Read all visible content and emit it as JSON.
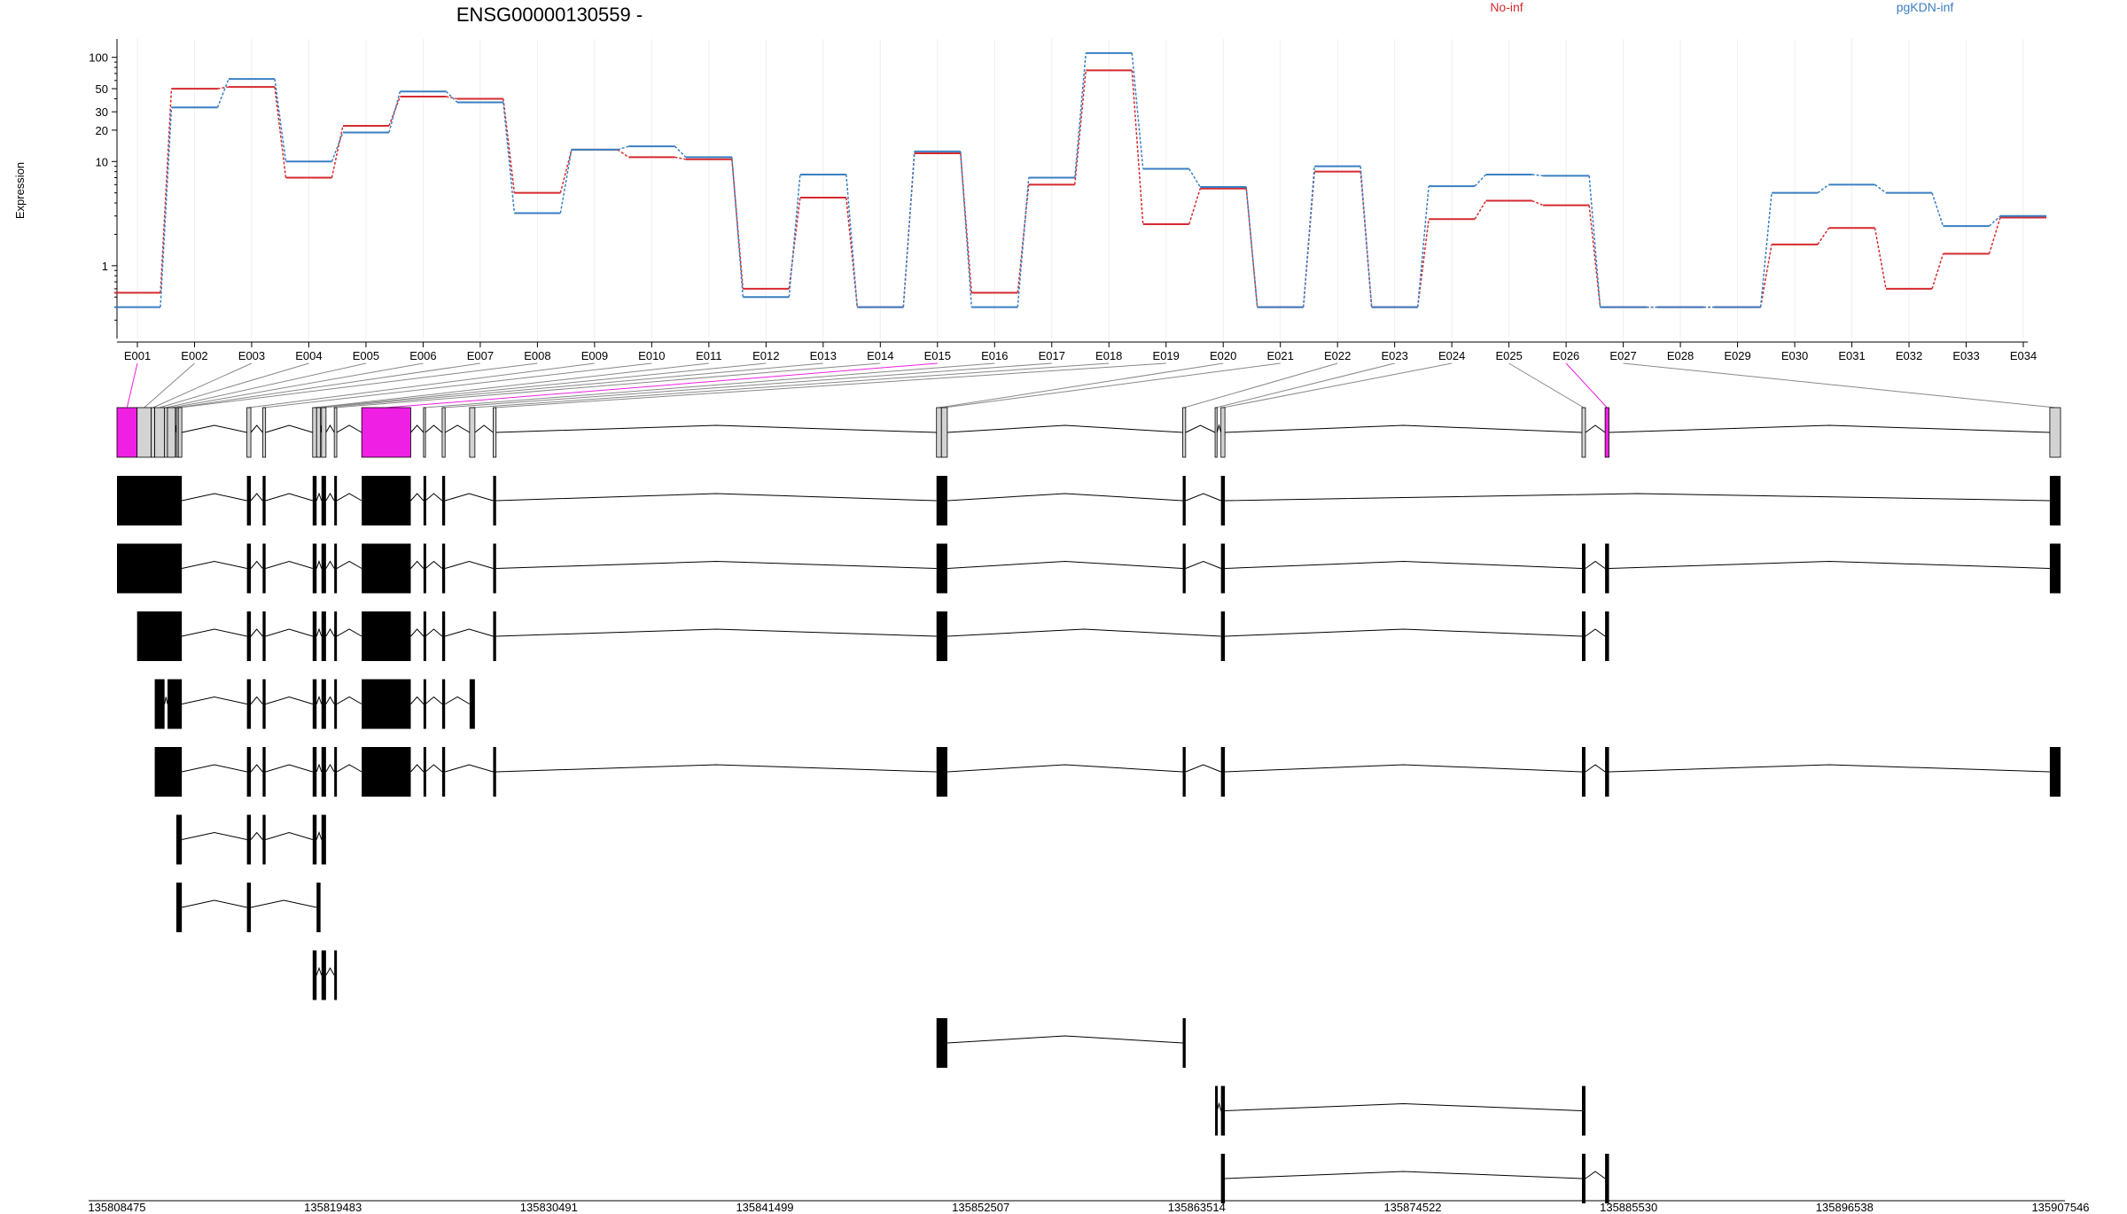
{
  "title": "ENSG00000130559 -",
  "legend": [
    {
      "label": "No-inf",
      "color": "#d42a2f"
    },
    {
      "label": "pgKDN-inf",
      "color": "#3a7fc2"
    }
  ],
  "chart_data": {
    "type": "line",
    "ylabel": "Expression",
    "yscale": "log",
    "ylim": [
      0.2,
      150
    ],
    "yticks": [
      1,
      10,
      20,
      30,
      50,
      100
    ],
    "categories": [
      "E001",
      "E002",
      "E003",
      "E004",
      "E005",
      "E006",
      "E007",
      "E008",
      "E009",
      "E010",
      "E011",
      "E012",
      "E013",
      "E014",
      "E015",
      "E016",
      "E017",
      "E018",
      "E019",
      "E020",
      "E021",
      "E022",
      "E023",
      "E024",
      "E025",
      "E026",
      "E027",
      "E028",
      "E029",
      "E030",
      "E031",
      "E032",
      "E033",
      "E034"
    ],
    "series": [
      {
        "name": "No-inf",
        "color": "#d42a2f",
        "values": [
          0.55,
          50,
          52,
          7,
          22,
          42,
          40,
          5,
          13,
          11,
          10.5,
          0.6,
          4.5,
          0.4,
          12,
          0.55,
          6,
          75,
          2.5,
          5.5,
          0.4,
          8,
          0.4,
          2.8,
          4.2,
          3.8,
          0.4,
          0.4,
          0.4,
          1.6,
          2.3,
          0.6,
          1.3,
          2.9
        ]
      },
      {
        "name": "pgKDN-inf",
        "color": "#3a7fc2",
        "values": [
          0.4,
          33,
          62,
          10,
          19,
          47,
          37,
          3.2,
          13,
          14,
          11,
          0.5,
          7.5,
          0.4,
          12.5,
          0.4,
          7,
          110,
          8.5,
          5.7,
          0.4,
          9,
          0.4,
          5.8,
          7.5,
          7.3,
          0.4,
          0.4,
          0.4,
          5,
          6,
          5,
          2.4,
          3
        ]
      }
    ],
    "genome_ticks": [
      "135808475",
      "135819483",
      "135830491",
      "135841499",
      "135852507",
      "135863514",
      "135874522",
      "135885530",
      "135896538",
      "135907546"
    ]
  },
  "gene_model": {
    "highlight_color": "#f01fe4",
    "exon_genomic": [
      [
        135808475,
        135809500
      ],
      [
        135809500,
        135810220
      ],
      [
        135810220,
        135810400
      ],
      [
        135810400,
        135810900
      ],
      [
        135810900,
        135811050
      ],
      [
        135811050,
        135811450
      ],
      [
        135811500,
        135811600
      ],
      [
        135811600,
        135811780
      ],
      [
        135815100,
        135815300
      ],
      [
        135815900,
        135816050
      ],
      [
        135818450,
        135818650
      ],
      [
        135818650,
        135818850
      ],
      [
        135818900,
        135819130
      ],
      [
        135819550,
        135819680
      ],
      [
        135820950,
        135823450
      ],
      [
        135824100,
        135824200
      ],
      [
        135825050,
        135825200
      ],
      [
        135826450,
        135826720
      ],
      [
        135827650,
        135827800
      ],
      [
        135850250,
        135850500
      ],
      [
        135850500,
        135850800
      ],
      [
        135862800,
        135862950
      ],
      [
        135864450,
        135864550
      ],
      [
        135864750,
        135864950
      ],
      [
        135883150,
        135883330
      ],
      [
        135884330,
        135884530
      ],
      [
        135907000,
        135907546
      ]
    ],
    "highlighted_exons": [
      0,
      14,
      25
    ],
    "transcripts": [
      [
        [
          135808475,
          135811780
        ],
        [
          135815100,
          135815300
        ],
        [
          135815900,
          135816050
        ],
        [
          135818450,
          135818650
        ],
        [
          135818900,
          135819130
        ],
        [
          135819550,
          135819680
        ],
        [
          135820950,
          135823450
        ],
        [
          135824100,
          135824200
        ],
        [
          135825050,
          135825200
        ],
        [
          135827650,
          135827800
        ],
        [
          135850250,
          135850800
        ],
        [
          135862800,
          135862950
        ],
        [
          135864750,
          135864950
        ],
        [
          135907000,
          135907546
        ]
      ],
      [
        [
          135808475,
          135811780
        ],
        [
          135815100,
          135815300
        ],
        [
          135815900,
          135816050
        ],
        [
          135818450,
          135818650
        ],
        [
          135818900,
          135819130
        ],
        [
          135819550,
          135819680
        ],
        [
          135820950,
          135823450
        ],
        [
          135824100,
          135824200
        ],
        [
          135825050,
          135825200
        ],
        [
          135827650,
          135827800
        ],
        [
          135850250,
          135850800
        ],
        [
          135862800,
          135862950
        ],
        [
          135864750,
          135864950
        ],
        [
          135883150,
          135883330
        ],
        [
          135884330,
          135884530
        ],
        [
          135907000,
          135907546
        ]
      ],
      [
        [
          135809500,
          135811780
        ],
        [
          135815100,
          135815300
        ],
        [
          135815900,
          135816050
        ],
        [
          135818450,
          135818650
        ],
        [
          135818900,
          135819130
        ],
        [
          135819550,
          135819680
        ],
        [
          135820950,
          135823450
        ],
        [
          135824100,
          135824200
        ],
        [
          135825050,
          135825200
        ],
        [
          135827650,
          135827800
        ],
        [
          135850250,
          135850800
        ],
        [
          135864750,
          135864950
        ],
        [
          135883150,
          135883330
        ],
        [
          135884330,
          135884530
        ]
      ],
      [
        [
          135810400,
          135810900
        ],
        [
          135811050,
          135811780
        ],
        [
          135815100,
          135815300
        ],
        [
          135815900,
          135816050
        ],
        [
          135818450,
          135818650
        ],
        [
          135818900,
          135819130
        ],
        [
          135819550,
          135819680
        ],
        [
          135820950,
          135823450
        ],
        [
          135824100,
          135824200
        ],
        [
          135825050,
          135825200
        ],
        [
          135826450,
          135826720
        ]
      ],
      [
        [
          135810400,
          135811780
        ],
        [
          135815100,
          135815300
        ],
        [
          135815900,
          135816050
        ],
        [
          135818450,
          135818650
        ],
        [
          135818900,
          135819130
        ],
        [
          135819550,
          135819680
        ],
        [
          135820950,
          135823450
        ],
        [
          135824100,
          135824200
        ],
        [
          135825050,
          135825200
        ],
        [
          135827650,
          135827800
        ],
        [
          135850250,
          135850800
        ],
        [
          135862800,
          135862950
        ],
        [
          135864750,
          135864950
        ],
        [
          135883150,
          135883330
        ],
        [
          135884330,
          135884530
        ],
        [
          135907000,
          135907546
        ]
      ],
      [
        [
          135811500,
          135811780
        ],
        [
          135815100,
          135815300
        ],
        [
          135815900,
          135816050
        ],
        [
          135818450,
          135818650
        ],
        [
          135818900,
          135819130
        ]
      ],
      [
        [
          135811500,
          135811780
        ],
        [
          135815100,
          135815300
        ],
        [
          135818650,
          135818850
        ]
      ],
      [
        [
          135818450,
          135818650
        ],
        [
          135818900,
          135819130
        ],
        [
          135819550,
          135819680
        ]
      ],
      [
        [
          135850250,
          135850800
        ],
        [
          135862800,
          135862950
        ]
      ],
      [
        [
          135864450,
          135864550
        ],
        [
          135864750,
          135864950
        ],
        [
          135883150,
          135883330
        ]
      ],
      [
        [
          135864750,
          135864950
        ],
        [
          135883150,
          135883330
        ],
        [
          135884330,
          135884530
        ]
      ]
    ]
  }
}
